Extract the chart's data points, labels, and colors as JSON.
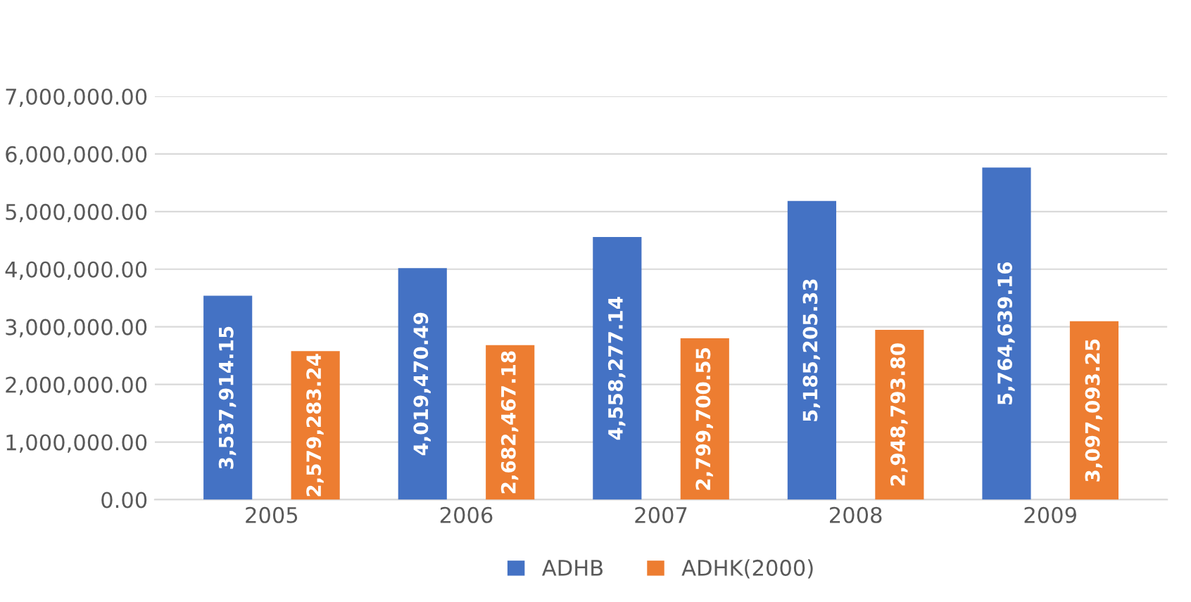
{
  "chart_data": {
    "type": "bar",
    "categories": [
      "2005",
      "2006",
      "2007",
      "2008",
      "2009"
    ],
    "series": [
      {
        "name": "ADHB",
        "color": "#4472c4",
        "values": [
          3537914.15,
          4019470.49,
          4558277.14,
          5185205.33,
          5764639.16
        ],
        "value_labels": [
          "3,537,914.15",
          "4,019,470.49",
          "4,558,277.14",
          "5,185,205.33",
          "5,764,639.16"
        ]
      },
      {
        "name": "ADHK(2000)",
        "color": "#ed7d31",
        "values": [
          2579283.24,
          2682467.18,
          2799700.55,
          2948793.8,
          3097093.25
        ],
        "value_labels": [
          "2,579,283.24",
          "2,682,467.18",
          "2,799,700.55",
          "2,948,793.80",
          "3,097,093.25"
        ]
      }
    ],
    "ylim": [
      0,
      7000000
    ],
    "yticks": [
      {
        "value": 0,
        "label": "0.00"
      },
      {
        "value": 1000000,
        "label": "1,000,000.00"
      },
      {
        "value": 2000000,
        "label": "2,000,000.00"
      },
      {
        "value": 3000000,
        "label": "3,000,000.00"
      },
      {
        "value": 4000000,
        "label": "4,000,000.00"
      },
      {
        "value": 5000000,
        "label": "5,000,000.00"
      },
      {
        "value": 6000000,
        "label": "6,000,000.00"
      },
      {
        "value": 7000000,
        "label": "7,000,000.00"
      }
    ],
    "grid": "y",
    "legend": "bottom"
  }
}
